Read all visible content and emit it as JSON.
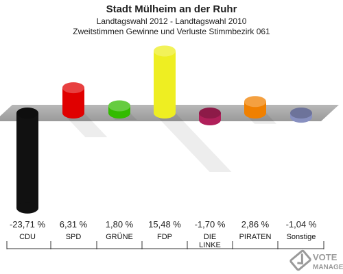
{
  "chart_data": {
    "type": "bar",
    "title": "Stadt Mülheim an der Ruhr",
    "subtitle": "Landtagswahl 2012 - Landtagswahl 2010",
    "subtitle2": "Zweitstimmen Gewinne und Verluste Stimmbezirk 061",
    "categories": [
      "CDU",
      "SPD",
      "GRÜNE",
      "FDP",
      "DIE\nLINKE",
      "PIRATEN",
      "Sonstige"
    ],
    "values": [
      -23.71,
      6.31,
      1.8,
      15.48,
      -1.7,
      2.86,
      -1.04
    ],
    "value_labels": [
      "-23,71 %",
      "6,31 %",
      "1,80 %",
      "15,48 %",
      "-1,70 %",
      "2,86 %",
      "-1,04 %"
    ],
    "colors": [
      "#111111",
      "#e00000",
      "#33bb00",
      "#eeee22",
      "#b0205a",
      "#f08000",
      "#8890c0"
    ],
    "unit": "%"
  },
  "watermark": {
    "brand": "VOTE",
    "sub": "MANAGER",
    "icon": "check-ballot-icon"
  }
}
